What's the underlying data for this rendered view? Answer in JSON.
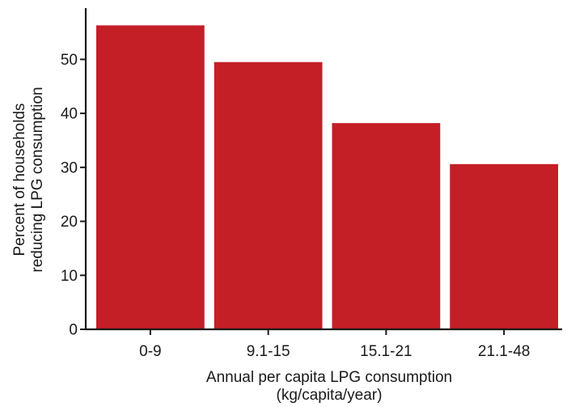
{
  "chart_data": {
    "type": "bar",
    "title": "",
    "categories": [
      "0-9",
      "9.1-15",
      "15.1-21",
      "21.1-48"
    ],
    "values": [
      56.3,
      49.5,
      38.2,
      30.6
    ],
    "xlabel_lines": [
      "Annual per capita LPG consumption",
      "(kg/capita/year)"
    ],
    "ylabel_lines": [
      "Percent of households",
      "reducing LPG consumption"
    ],
    "ylim": [
      0,
      59.5
    ],
    "yticks": [
      0,
      10,
      20,
      30,
      40,
      50
    ],
    "bar_color": "#c41e27",
    "grid": false,
    "legend": "none"
  }
}
